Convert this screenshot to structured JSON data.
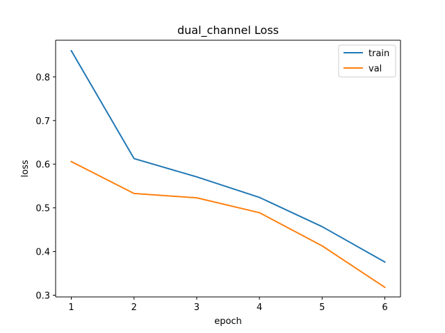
{
  "chart_data": {
    "type": "line",
    "title": "dual_channel Loss",
    "xlabel": "epoch",
    "ylabel": "loss",
    "x": [
      1,
      2,
      3,
      4,
      5,
      6
    ],
    "xticks": [
      "1",
      "2",
      "3",
      "4",
      "5",
      "6"
    ],
    "yticks": [
      "0.3",
      "0.4",
      "0.5",
      "0.6",
      "0.7",
      "0.8"
    ],
    "xlim": [
      0.75,
      6.25
    ],
    "ylim": [
      0.296,
      0.884
    ],
    "grid": false,
    "legend_position": "top-right",
    "series": [
      {
        "name": "train",
        "color": "#1f77b4",
        "values": [
          0.86,
          0.613,
          0.571,
          0.524,
          0.457,
          0.376
        ]
      },
      {
        "name": "val",
        "color": "#ff7f0e",
        "values": [
          0.606,
          0.533,
          0.523,
          0.489,
          0.413,
          0.318
        ]
      }
    ]
  }
}
